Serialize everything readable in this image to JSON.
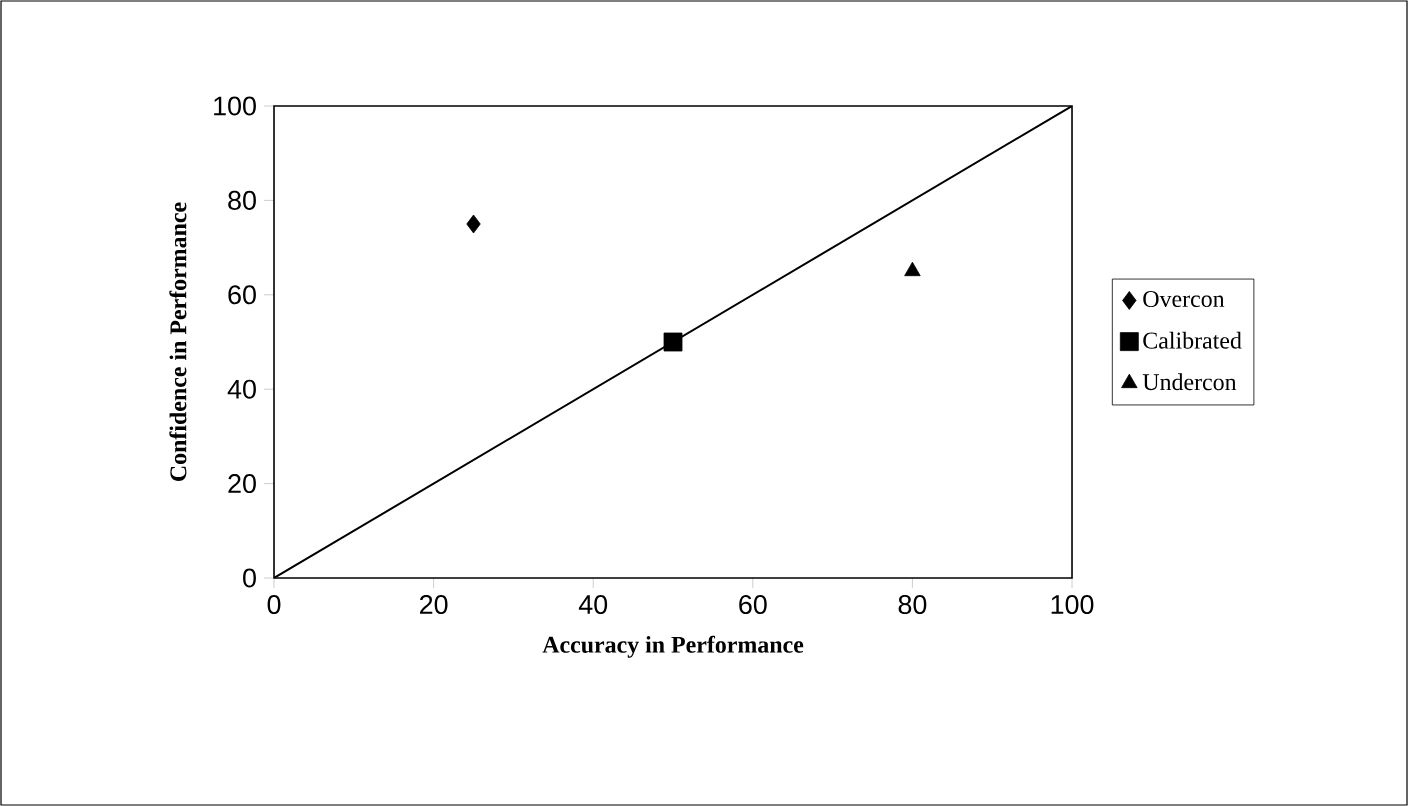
{
  "chart_data": {
    "type": "scatter",
    "xlabel": "Accuracy in Performance",
    "ylabel": "Confidence in Performance",
    "xlim": [
      0,
      100
    ],
    "ylim": [
      0,
      100
    ],
    "xticks": [
      0,
      20,
      40,
      60,
      80,
      100
    ],
    "yticks": [
      0,
      20,
      40,
      60,
      80,
      100
    ],
    "grid": false,
    "legend": "right",
    "series": [
      {
        "name": "Overcon",
        "color": "#000000",
        "marker": "diamond",
        "x": [
          25
        ],
        "values": [
          75
        ]
      },
      {
        "name": "Calibrated",
        "color": "#000000",
        "marker": "square",
        "x": [
          50
        ],
        "values": [
          50
        ]
      },
      {
        "name": "Undercon",
        "color": "#000000",
        "marker": "triangle",
        "x": [
          80
        ],
        "values": [
          65
        ]
      },
      {
        "type": "line",
        "color": "#000000",
        "marker": "none",
        "line_style": "solid",
        "x": [
          0,
          100
        ],
        "values": [
          0,
          100
        ]
      }
    ]
  }
}
